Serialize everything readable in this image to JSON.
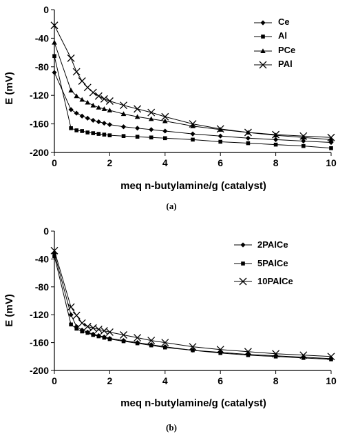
{
  "chart_data": [
    {
      "type": "line",
      "caption": "(a)",
      "xlabel": "meq n-butylamine/g (catalyst)",
      "ylabel": "E (mV)",
      "xlim": [
        0,
        10
      ],
      "ylim": [
        -200,
        0
      ],
      "xticks": [
        "0",
        "2",
        "4",
        "6",
        "8",
        "10"
      ],
      "yticks": [
        "0",
        "-40",
        "-80",
        "-120",
        "-160",
        "-200"
      ],
      "legend_position": "top-right",
      "grid": false,
      "series": [
        {
          "name": "Ce",
          "marker": "diamond",
          "x": [
            0,
            0.6,
            0.8,
            1.0,
            1.2,
            1.4,
            1.6,
            1.8,
            2.0,
            2.5,
            3.0,
            3.5,
            4.0,
            5.0,
            6.0,
            7.0,
            8.0,
            9.0,
            10.0
          ],
          "y": [
            -88,
            -140,
            -145,
            -149,
            -152,
            -155,
            -157,
            -159,
            -161,
            -164,
            -166,
            -168,
            -170,
            -174,
            -177,
            -180,
            -182,
            -184,
            -186
          ]
        },
        {
          "name": "Al",
          "marker": "square",
          "x": [
            0,
            0.6,
            0.8,
            1.0,
            1.2,
            1.4,
            1.6,
            1.8,
            2.0,
            2.5,
            3.0,
            3.5,
            4.0,
            5.0,
            6.0,
            7.0,
            8.0,
            9.0,
            10.0
          ],
          "y": [
            -65,
            -166,
            -169,
            -170,
            -172,
            -173,
            -174,
            -175,
            -176,
            -177,
            -178,
            -179,
            -180,
            -182,
            -185,
            -187,
            -189,
            -191,
            -194
          ]
        },
        {
          "name": "PCe",
          "marker": "triangle",
          "x": [
            0,
            0.6,
            0.8,
            1.0,
            1.2,
            1.4,
            1.6,
            1.8,
            2.0,
            2.5,
            3.0,
            3.5,
            4.0,
            5.0,
            6.0,
            7.0,
            8.0,
            9.0,
            10.0
          ],
          "y": [
            -46,
            -113,
            -121,
            -126,
            -130,
            -134,
            -137,
            -139,
            -141,
            -146,
            -150,
            -153,
            -156,
            -163,
            -168,
            -172,
            -176,
            -179,
            -182
          ]
        },
        {
          "name": "PAl",
          "marker": "x",
          "x": [
            0,
            0.6,
            0.8,
            1.0,
            1.2,
            1.4,
            1.6,
            1.8,
            2.0,
            2.5,
            3.0,
            3.5,
            4.0,
            5.0,
            6.0,
            7.0,
            8.0,
            9.0,
            10.0
          ],
          "y": [
            -22,
            -68,
            -87,
            -100,
            -109,
            -116,
            -121,
            -125,
            -128,
            -134,
            -139,
            -144,
            -150,
            -160,
            -167,
            -172,
            -175,
            -177,
            -179
          ]
        }
      ]
    },
    {
      "type": "line",
      "caption": "(b)",
      "xlabel": "meq n-butylamine/g (catalyst)",
      "ylabel": "E (mV)",
      "xlim": [
        0,
        10
      ],
      "ylim": [
        -200,
        0
      ],
      "xticks": [
        "0",
        "2",
        "4",
        "6",
        "8",
        "10"
      ],
      "yticks": [
        "0",
        "-40",
        "-80",
        "-120",
        "-160",
        "-200"
      ],
      "legend_position": "top-right",
      "grid": false,
      "series": [
        {
          "name": "2PAlCe",
          "marker": "diamond",
          "x": [
            0,
            0.6,
            0.8,
            1.0,
            1.2,
            1.4,
            1.6,
            1.8,
            2.0,
            2.5,
            3.0,
            3.5,
            4.0,
            5.0,
            6.0,
            7.0,
            8.0,
            9.0,
            10.0
          ],
          "y": [
            -32,
            -120,
            -137,
            -142,
            -145,
            -148,
            -150,
            -152,
            -154,
            -157,
            -160,
            -163,
            -166,
            -171,
            -174,
            -177,
            -179,
            -181,
            -183
          ]
        },
        {
          "name": "5PAlCe",
          "marker": "square",
          "x": [
            0,
            0.6,
            0.8,
            1.0,
            1.2,
            1.4,
            1.6,
            1.8,
            2.0,
            2.5,
            3.0,
            3.5,
            4.0,
            5.0,
            6.0,
            7.0,
            8.0,
            9.0,
            10.0
          ],
          "y": [
            -36,
            -134,
            -140,
            -144,
            -146,
            -149,
            -151,
            -153,
            -155,
            -158,
            -161,
            -164,
            -167,
            -171,
            -175,
            -178,
            -180,
            -182,
            -184
          ]
        },
        {
          "name": "10PAlCe",
          "marker": "x",
          "x": [
            0,
            0.6,
            0.8,
            1.0,
            1.2,
            1.4,
            1.6,
            1.8,
            2.0,
            2.5,
            3.0,
            3.5,
            4.0,
            5.0,
            6.0,
            7.0,
            8.0,
            9.0,
            10.0
          ],
          "y": [
            -28,
            -109,
            -121,
            -132,
            -137,
            -139,
            -141,
            -143,
            -145,
            -149,
            -153,
            -157,
            -160,
            -166,
            -170,
            -173,
            -176,
            -178,
            -180
          ]
        }
      ]
    }
  ]
}
